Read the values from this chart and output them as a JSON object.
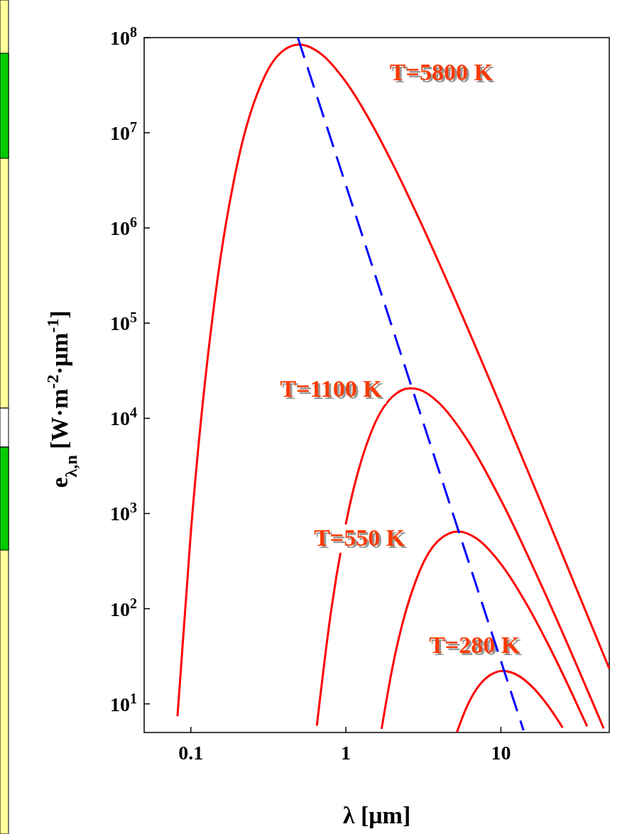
{
  "chart_data": {
    "type": "line",
    "xlabel": "λ  [μm]",
    "ylabel": "e$_{λ,n}$  [W·m$^{-2}$·μm$^{-1}$]",
    "log": "xy",
    "xlim": [
      0.05,
      50
    ],
    "ylim": [
      5,
      100000000
    ],
    "xticks": [
      0.1,
      1,
      10
    ],
    "yticks": [
      {
        "value": 10,
        "label": "10$^{1}$"
      },
      {
        "value": 100,
        "label": "10$^{2}$"
      },
      {
        "value": 1000,
        "label": "10$^{3}$"
      },
      {
        "value": 10000,
        "label": "10$^{4}$"
      },
      {
        "value": 100000,
        "label": "10$^{5}$"
      },
      {
        "value": 1000000,
        "label": "10$^{6}$"
      },
      {
        "value": 10000000,
        "label": "10$^{7}$"
      },
      {
        "value": 100000000,
        "label": "10$^{8}$"
      }
    ],
    "marker": "none",
    "grid": false,
    "series": [
      {
        "name": "T=5800 K",
        "color": "#ff0000",
        "line_style": "solid",
        "x": [
          0.082,
          0.1,
          0.15,
          0.2,
          0.3,
          0.4,
          0.5,
          0.7,
          1,
          1.5,
          2,
          3,
          5,
          10,
          20,
          50
        ],
        "values": [
          7.4,
          630,
          324000,
          4800000,
          39500000,
          74200000,
          84500000,
          66300000,
          34200000,
          11660000,
          4760000,
          1197000,
          186500,
          13290,
          885,
          23.5
        ]
      },
      {
        "name": "T=1100 K",
        "color": "#ff0000",
        "line_style": "solid",
        "x": [
          0.65,
          0.8,
          1,
          1.5,
          2,
          2.6,
          3,
          4,
          6,
          10,
          20,
          40,
          46
        ],
        "values": [
          5.9,
          90.6,
          781,
          8049,
          16915,
          20710,
          19932,
          14438,
          6133,
          1386,
          126.7,
          9.45,
          5.52
        ]
      },
      {
        "name": "T=550 K",
        "color": "#ff0000",
        "line_style": "solid",
        "x": [
          1.7,
          2,
          3,
          4,
          5.3,
          7,
          10,
          15,
          20,
          30,
          36
        ],
        "values": [
          5.46,
          24.4,
          251.5,
          528.6,
          647.5,
          543,
          295,
          104.4,
          43.3,
          11.06,
          5.79
        ]
      },
      {
        "name": "T=280 K",
        "color": "#ff0000",
        "line_style": "solid",
        "x": [
          5.2,
          6,
          8,
          10.3,
          13,
          16,
          20,
          25
        ],
        "values": [
          5.03,
          9.18,
          18.57,
          22.14,
          19.72,
          14.97,
          9.7,
          5.63
        ]
      },
      {
        "color": "#0000ff",
        "line_style": "dashed",
        "x": [
          0.49,
          14
        ],
        "values": [
          100000000,
          5.25
        ]
      }
    ]
  }
}
